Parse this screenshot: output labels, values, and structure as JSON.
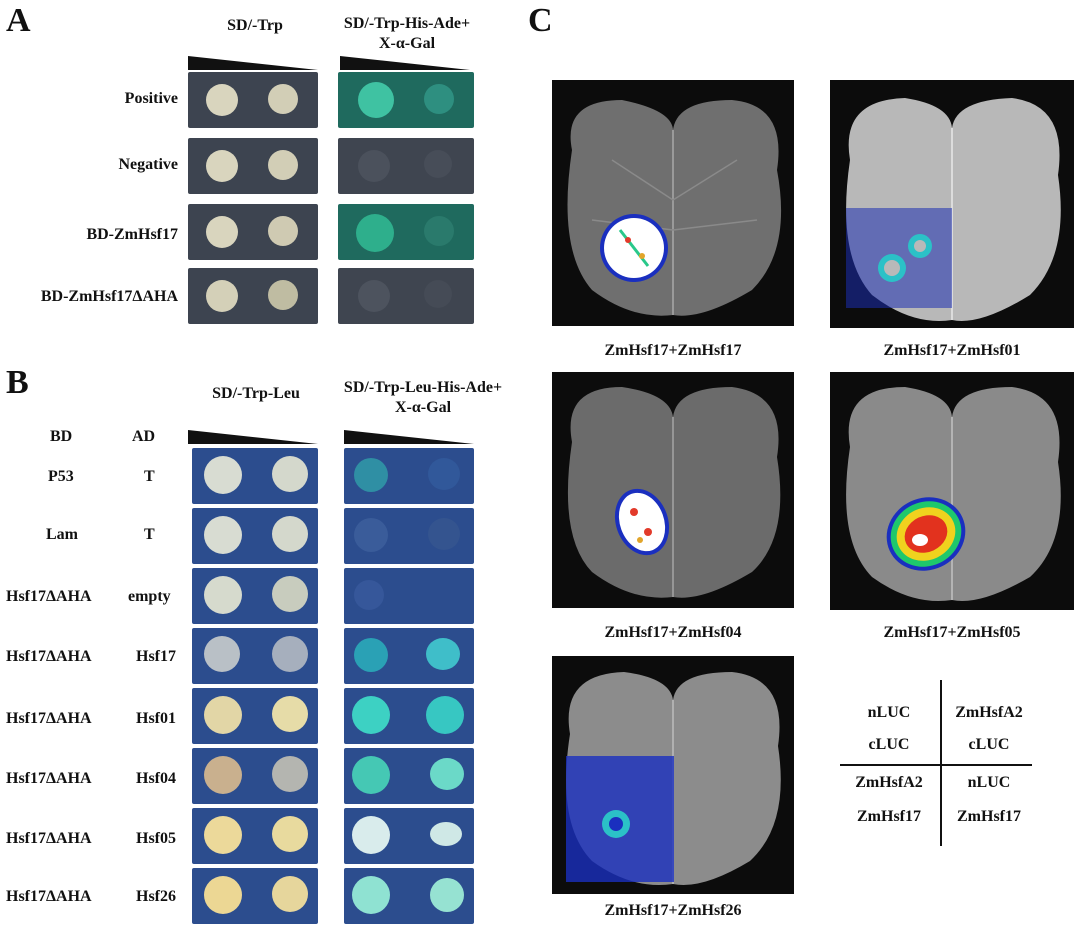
{
  "panelA": {
    "letter": "A",
    "col1": "SD/-Trp",
    "col2_line1": "SD/-Trp-His-Ade+",
    "col2_line2": "X-α-Gal",
    "rows": [
      "Positive",
      "Negative",
      "BD-ZmHsf17",
      "BD-ZmHsf17ΔAHA"
    ]
  },
  "panelB": {
    "letter": "B",
    "col1": "SD/-Trp-Leu",
    "col2_line1": "SD/-Trp-Leu-His-Ade+",
    "col2_line2": "X-α-Gal",
    "bd_header": "BD",
    "ad_header": "AD",
    "rows": [
      {
        "bd": "P53",
        "ad": "T"
      },
      {
        "bd": "Lam",
        "ad": "T"
      },
      {
        "bd": "Hsf17ΔAHA",
        "ad": "empty"
      },
      {
        "bd": "Hsf17ΔAHA",
        "ad": "Hsf17"
      },
      {
        "bd": "Hsf17ΔAHA",
        "ad": "Hsf01"
      },
      {
        "bd": "Hsf17ΔAHA",
        "ad": "Hsf04"
      },
      {
        "bd": "Hsf17ΔAHA",
        "ad": "Hsf05"
      },
      {
        "bd": "Hsf17ΔAHA",
        "ad": "Hsf26"
      }
    ]
  },
  "panelC": {
    "letter": "C",
    "captions": [
      "ZmHsf17+ZmHsf17",
      "ZmHsf17+ZmHsf01",
      "ZmHsf17+ZmHsf04",
      "ZmHsf17+ZmHsf05",
      "ZmHsf17+ZmHsf26"
    ],
    "legend": {
      "tl1": "nLUC",
      "tl2": "cLUC",
      "tr1": "ZmHsfA2",
      "tr2": "cLUC",
      "bl1": "ZmHsfA2",
      "bl2": "ZmHsf17",
      "br1": "nLUC",
      "br2": "ZmHsf17"
    }
  },
  "colors": {
    "plateA": "#3d4450",
    "plateB": "#2c4d8e",
    "colony": "#d9d6c2",
    "blue_green": "#2fa98f"
  }
}
